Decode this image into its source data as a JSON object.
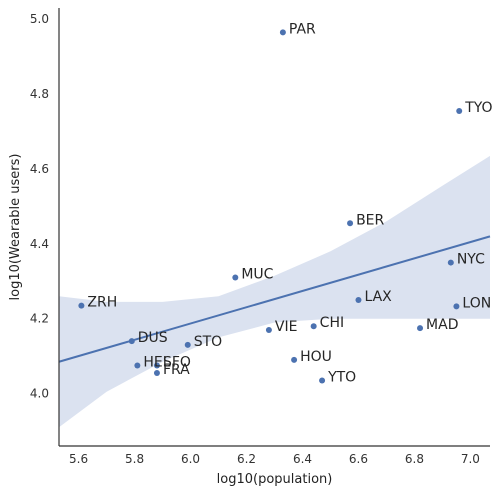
{
  "chart_data": {
    "type": "scatter",
    "xlabel": "log10(population)",
    "ylabel": "log10(Wearable users)",
    "xlim": [
      5.53,
      7.07
    ],
    "ylim": [
      3.86,
      5.03
    ],
    "xticks": [
      5.6,
      5.8,
      6.0,
      6.2,
      6.4,
      6.6,
      6.8,
      7.0
    ],
    "yticks": [
      4.0,
      4.2,
      4.4,
      4.6,
      4.8,
      5.0
    ],
    "grid": false,
    "colors": {
      "points": "#4c72b0",
      "line": "#4c72b0",
      "band": "#dbe2f0",
      "axes": "#333333"
    },
    "points": [
      {
        "label": "PAR",
        "x": 6.33,
        "y": 4.965
      },
      {
        "label": "TYO",
        "x": 6.96,
        "y": 4.755
      },
      {
        "label": "BER",
        "x": 6.57,
        "y": 4.455
      },
      {
        "label": "NYC",
        "x": 6.93,
        "y": 4.35
      },
      {
        "label": "MUC",
        "x": 6.16,
        "y": 4.31
      },
      {
        "label": "ZRH",
        "x": 5.61,
        "y": 4.235
      },
      {
        "label": "LAX",
        "x": 6.6,
        "y": 4.25
      },
      {
        "label": "LON",
        "x": 6.95,
        "y": 4.233
      },
      {
        "label": "MAD",
        "x": 6.82,
        "y": 4.175
      },
      {
        "label": "CHI",
        "x": 6.44,
        "y": 4.18
      },
      {
        "label": "VIE",
        "x": 6.28,
        "y": 4.17
      },
      {
        "label": "DUS",
        "x": 5.79,
        "y": 4.14
      },
      {
        "label": "STO",
        "x": 5.99,
        "y": 4.13
      },
      {
        "label": "HOU",
        "x": 6.37,
        "y": 4.09
      },
      {
        "label": "HEL",
        "x": 5.81,
        "y": 4.075
      },
      {
        "label": "SFO",
        "x": 5.88,
        "y": 4.075
      },
      {
        "label": "FRA",
        "x": 5.88,
        "y": 4.055
      },
      {
        "label": "YTO",
        "x": 6.47,
        "y": 4.035
      }
    ],
    "regression": {
      "x": [
        5.53,
        7.07
      ],
      "y": [
        4.085,
        4.42
      ]
    },
    "confidence_band": {
      "x": [
        5.53,
        5.7,
        5.9,
        6.1,
        6.3,
        6.5,
        6.7,
        6.9,
        7.07
      ],
      "lower": [
        3.91,
        4.005,
        4.085,
        4.15,
        4.19,
        4.2,
        4.2,
        4.2,
        4.2
      ],
      "upper": [
        4.26,
        4.245,
        4.245,
        4.26,
        4.315,
        4.38,
        4.46,
        4.555,
        4.635
      ]
    }
  }
}
